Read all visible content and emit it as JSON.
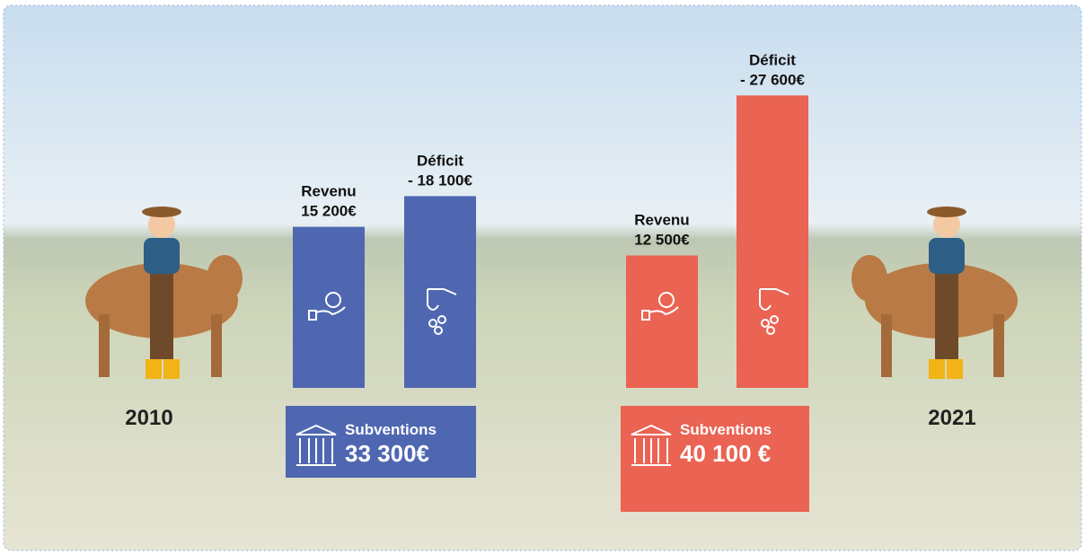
{
  "groups": [
    {
      "year": "2010",
      "color": "#4f67b1",
      "bars": [
        {
          "label": "Revenu",
          "value": 15200,
          "value_label": "15 200€"
        },
        {
          "label": "Déficit",
          "value": -18100,
          "value_label": "- 18 100€"
        }
      ],
      "subsidy": {
        "label": "Subventions",
        "value_label": "33 300€"
      }
    },
    {
      "year": "2021",
      "color": "#ea6353",
      "bars": [
        {
          "label": "Revenu",
          "value": 12500,
          "value_label": "12 500€"
        },
        {
          "label": "Déficit",
          "value": -27600,
          "value_label": "- 27 600€"
        }
      ],
      "subsidy": {
        "label": "Subventions",
        "value_label": "40 100 €"
      }
    }
  ]
}
